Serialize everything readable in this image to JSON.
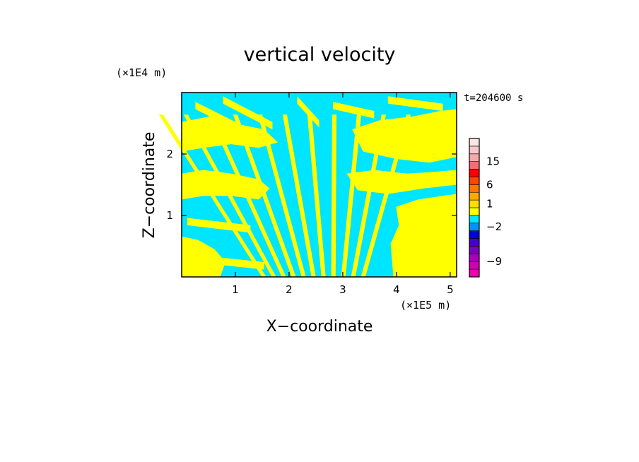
{
  "chart_data": {
    "type": "heatmap",
    "title": "vertical velocity",
    "xlabel": "X−coordinate",
    "ylabel": "Z−coordinate",
    "x_unit": "(×1E5 m)",
    "y_unit": "(×1E4 m)",
    "time_label": "t=204600 s",
    "xlim": [
      0,
      5.12
    ],
    "ylim": [
      0,
      3.0
    ],
    "x_ticks": [
      "1",
      "2",
      "3",
      "4",
      "5"
    ],
    "x_tick_values": [
      1,
      2,
      3,
      4,
      5
    ],
    "y_ticks": [
      "1",
      "2"
    ],
    "y_tick_values": [
      1,
      2
    ],
    "field_colors": {
      "positive": "#ffff00",
      "negative": "#00e5ff"
    },
    "colorbar": {
      "levels": [
        {
          "color": "#ee00aa"
        },
        {
          "color": "#cc00b4"
        },
        {
          "color": "#aa00bb"
        },
        {
          "color": "#7a00c0"
        },
        {
          "color": "#4400cc"
        },
        {
          "color": "#0000dd"
        },
        {
          "color": "#0090ff"
        },
        {
          "color": "#00e5ff"
        },
        {
          "color": "#ffff00"
        },
        {
          "color": "#ffdd00"
        },
        {
          "color": "#ffaa00"
        },
        {
          "color": "#ff7700"
        },
        {
          "color": "#ff4400"
        },
        {
          "color": "#ff0000"
        },
        {
          "color": "#f07070"
        },
        {
          "color": "#f4a8a8"
        },
        {
          "color": "#f8c8c8"
        },
        {
          "color": "#fbe6e6"
        }
      ],
      "tick_labels": [
        "15",
        "6",
        "1",
        "−2",
        "−9"
      ],
      "tick_values": [
        15,
        6,
        1,
        -2,
        -9
      ]
    }
  }
}
